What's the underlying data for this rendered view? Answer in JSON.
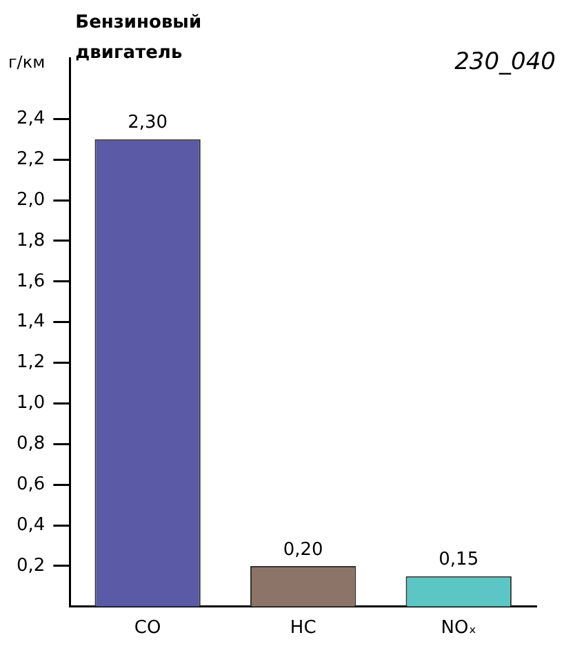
{
  "chart_data": {
    "type": "bar",
    "title": "Бензиновый\nдвигатель",
    "ylabel": "г/км",
    "annotations": [
      "230_040"
    ],
    "categories": [
      "CO",
      "HC",
      "NOₓ"
    ],
    "series": [
      {
        "values": [
          2.3,
          0.2,
          0.15
        ],
        "colors": [
          "#5a5aa6",
          "#8c7468",
          "#5cc6c4"
        ],
        "value_labels": [
          "2,30",
          "0,20",
          "0,15"
        ]
      }
    ],
    "ylim": [
      0,
      2.7
    ],
    "yticks": [
      {
        "value": 0.2,
        "label": "0,2"
      },
      {
        "value": 0.4,
        "label": "0,4"
      },
      {
        "value": 0.6,
        "label": "0,6"
      },
      {
        "value": 0.8,
        "label": "0,8"
      },
      {
        "value": 1.0,
        "label": "1,0"
      },
      {
        "value": 1.2,
        "label": "1,2"
      },
      {
        "value": 1.4,
        "label": "1,4"
      },
      {
        "value": 1.6,
        "label": "1,6"
      },
      {
        "value": 1.8,
        "label": "1,8"
      },
      {
        "value": 2.0,
        "label": "2,0"
      },
      {
        "value": 2.2,
        "label": "2,2"
      },
      {
        "value": 2.4,
        "label": "2,4"
      }
    ],
    "grid": false,
    "legend": false
  }
}
